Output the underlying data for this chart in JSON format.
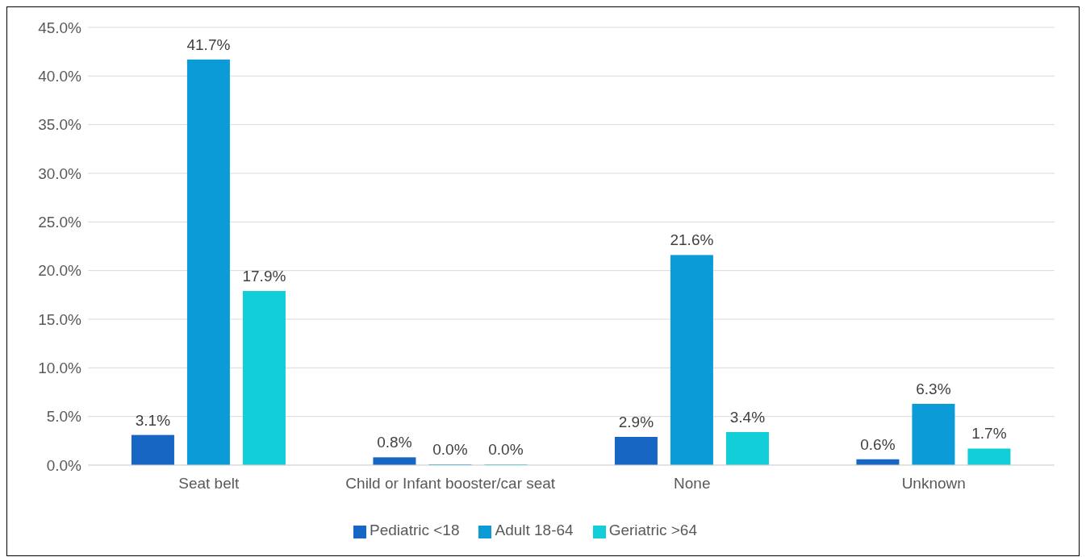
{
  "chart_data": {
    "type": "bar",
    "categories": [
      "Seat belt",
      "Child or Infant booster/car seat",
      "None",
      "Unknown"
    ],
    "series": [
      {
        "name": "Pediatric <18",
        "color": "#1766c4",
        "values": [
          3.1,
          0.8,
          2.9,
          0.6
        ],
        "value_labels": [
          "3.1%",
          "0.8%",
          "2.9%",
          "0.6%"
        ]
      },
      {
        "name": "Adult 18-64",
        "color": "#0b9cd8",
        "values": [
          41.7,
          0.0,
          21.6,
          6.3
        ],
        "value_labels": [
          "41.7%",
          "0.0%",
          "21.6%",
          "6.3%"
        ]
      },
      {
        "name": "Geriatric >64",
        "color": "#12ced8",
        "values": [
          17.9,
          0.0,
          3.4,
          1.7
        ],
        "value_labels": [
          "17.9%",
          "0.0%",
          "3.4%",
          "1.7%"
        ]
      }
    ],
    "ylim": [
      0,
      45
    ],
    "yticks": [
      {
        "value": 0,
        "label": "0.0%"
      },
      {
        "value": 5,
        "label": "5.0%"
      },
      {
        "value": 10,
        "label": "10.0%"
      },
      {
        "value": 15,
        "label": "15.0%"
      },
      {
        "value": 20,
        "label": "20.0%"
      },
      {
        "value": 25,
        "label": "25.0%"
      },
      {
        "value": 30,
        "label": "30.0%"
      },
      {
        "value": 35,
        "label": "35.0%"
      },
      {
        "value": 40,
        "label": "40.0%"
      },
      {
        "value": 45,
        "label": "45.0%"
      }
    ],
    "grid": "y",
    "legend": "bottom"
  }
}
